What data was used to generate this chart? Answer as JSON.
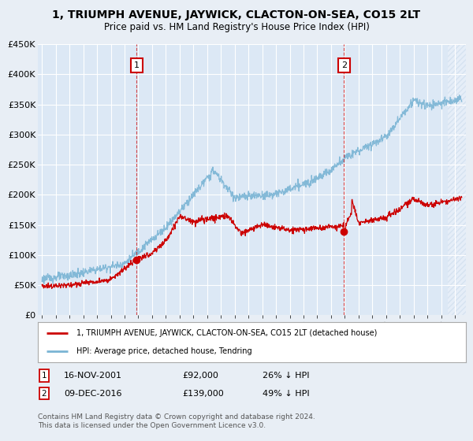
{
  "title": "1, TRIUMPH AVENUE, JAYWICK, CLACTON-ON-SEA, CO15 2LT",
  "subtitle": "Price paid vs. HM Land Registry's House Price Index (HPI)",
  "legend_line1": "1, TRIUMPH AVENUE, JAYWICK, CLACTON-ON-SEA, CO15 2LT (detached house)",
  "legend_line2": "HPI: Average price, detached house, Tendring",
  "footer": "Contains HM Land Registry data © Crown copyright and database right 2024.\nThis data is licensed under the Open Government Licence v3.0.",
  "sale1_date": 2001.88,
  "sale1_price": 92000,
  "sale1_label": "16-NOV-2001",
  "sale1_pct": "26% ↓ HPI",
  "sale2_date": 2016.94,
  "sale2_price": 139000,
  "sale2_label": "09-DEC-2016",
  "sale2_pct": "49% ↓ HPI",
  "red_color": "#cc0000",
  "blue_color": "#7ab4d4",
  "background_color": "#e8eef5",
  "plot_bg_color": "#dce8f5",
  "grid_color": "#c8d8e8",
  "ylim": [
    0,
    450000
  ],
  "xlim_start": 1994.7,
  "xlim_end": 2025.8
}
